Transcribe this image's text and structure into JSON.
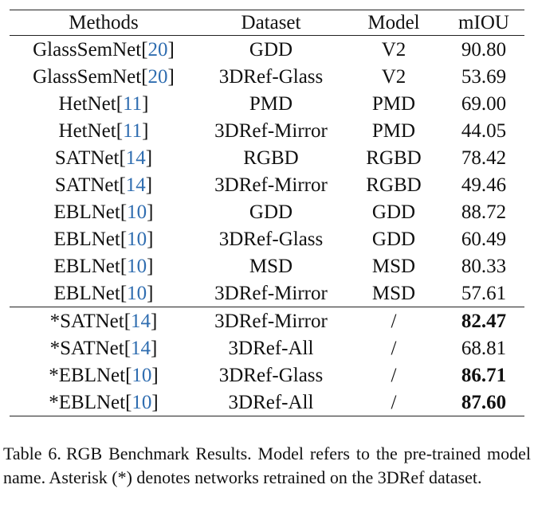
{
  "table": {
    "headers": [
      "Methods",
      "Dataset",
      "Model",
      "mIOU"
    ],
    "rows": [
      {
        "prefix": "",
        "method": "GlassSemNet",
        "ref": "20",
        "dataset": "GDD",
        "model": "V2",
        "miou": "90.80",
        "bold": false
      },
      {
        "prefix": "",
        "method": "GlassSemNet",
        "ref": "20",
        "dataset": "3DRef-Glass",
        "model": "V2",
        "miou": "53.69",
        "bold": false
      },
      {
        "prefix": "",
        "method": "HetNet",
        "ref": "11",
        "dataset": "PMD",
        "model": "PMD",
        "miou": "69.00",
        "bold": false
      },
      {
        "prefix": "",
        "method": "HetNet",
        "ref": "11",
        "dataset": "3DRef-Mirror",
        "model": "PMD",
        "miou": "44.05",
        "bold": false
      },
      {
        "prefix": "",
        "method": "SATNet",
        "ref": "14",
        "dataset": "RGBD",
        "model": "RGBD",
        "miou": "78.42",
        "bold": false
      },
      {
        "prefix": "",
        "method": "SATNet",
        "ref": "14",
        "dataset": "3DRef-Mirror",
        "model": "RGBD",
        "miou": "49.46",
        "bold": false
      },
      {
        "prefix": "",
        "method": "EBLNet",
        "ref": "10",
        "dataset": "GDD",
        "model": "GDD",
        "miou": "88.72",
        "bold": false
      },
      {
        "prefix": "",
        "method": "EBLNet",
        "ref": "10",
        "dataset": "3DRef-Glass",
        "model": "GDD",
        "miou": "60.49",
        "bold": false
      },
      {
        "prefix": "",
        "method": "EBLNet",
        "ref": "10",
        "dataset": "MSD",
        "model": "MSD",
        "miou": "80.33",
        "bold": false
      },
      {
        "prefix": "",
        "method": "EBLNet",
        "ref": "10",
        "dataset": "3DRef-Mirror",
        "model": "MSD",
        "miou": "57.61",
        "bold": false
      },
      {
        "prefix": "*",
        "method": "SATNet",
        "ref": "14",
        "dataset": "3DRef-Mirror",
        "model": "/",
        "miou": "82.47",
        "bold": true
      },
      {
        "prefix": "*",
        "method": "SATNet",
        "ref": "14",
        "dataset": "3DRef-All",
        "model": "/",
        "miou": "68.81",
        "bold": false
      },
      {
        "prefix": "*",
        "method": "EBLNet",
        "ref": "10",
        "dataset": "3DRef-Glass",
        "model": "/",
        "miou": "86.71",
        "bold": true
      },
      {
        "prefix": "*",
        "method": "EBLNet",
        "ref": "10",
        "dataset": "3DRef-All",
        "model": "/",
        "miou": "87.60",
        "bold": true
      }
    ]
  },
  "caption": {
    "label": "Table 6.",
    "text": "RGB Benchmark Results.  Model refers to the pre-trained model name.  Asterisk (*) denotes networks retrained on the 3DRef dataset."
  }
}
